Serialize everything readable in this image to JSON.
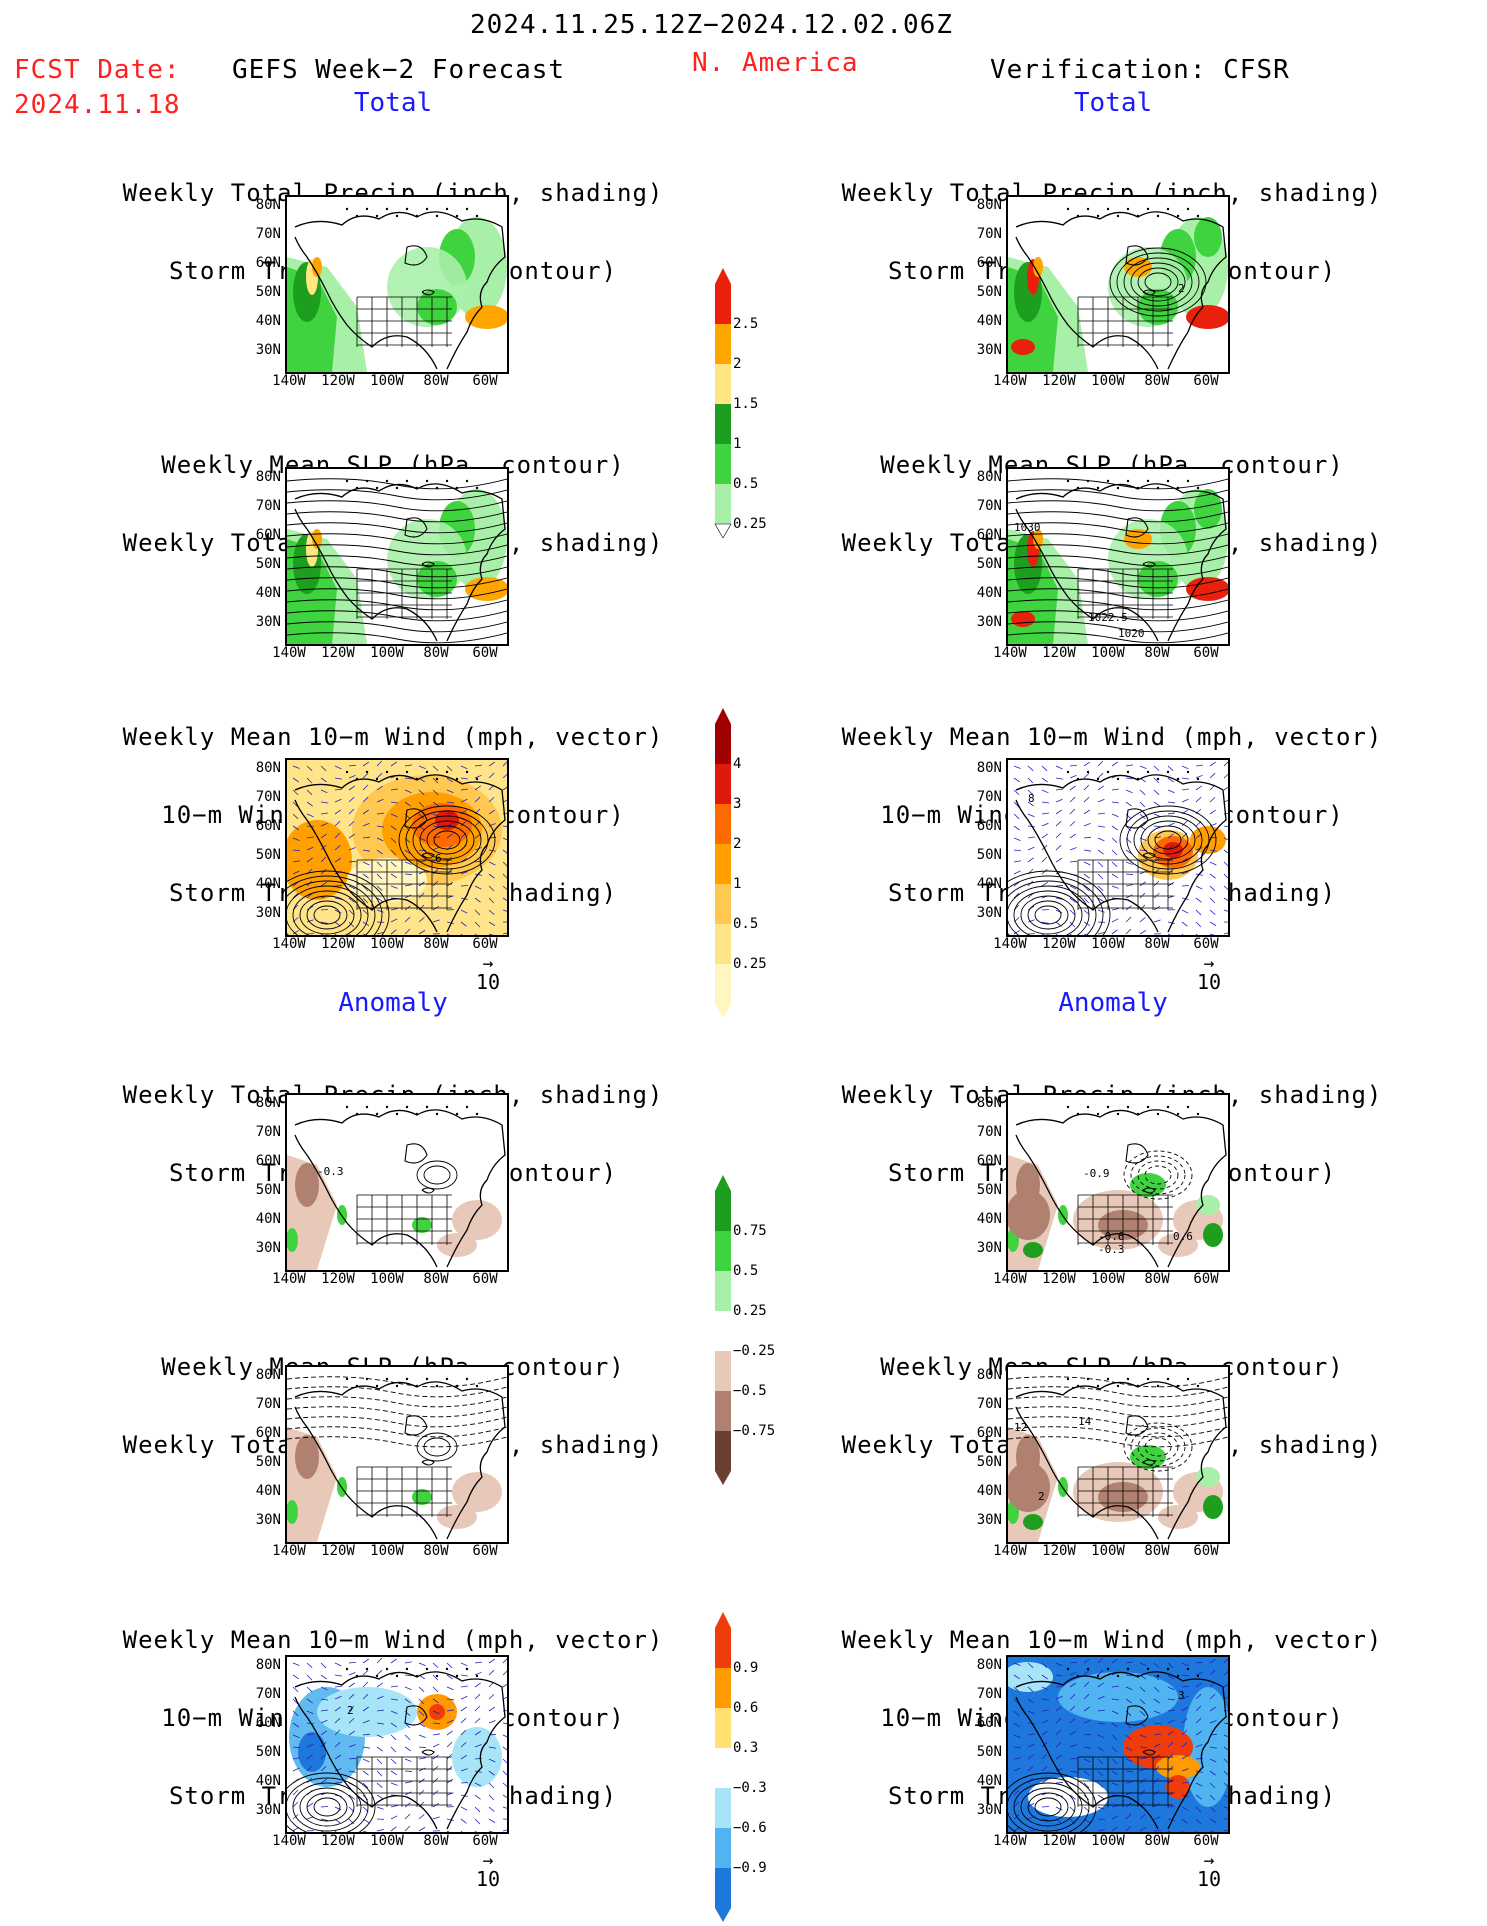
{
  "header": {
    "date_range": "2024.11.25.12Z−2024.12.02.06Z",
    "fcst_label": "FCST Date:",
    "fcst_date": "2024.11.18",
    "left_title": "GEFS Week−2 Forecast",
    "region": "N. America",
    "right_title": "Verification: CFSR"
  },
  "sections": {
    "total": "Total",
    "anomaly": "Anomaly"
  },
  "panel_titles": {
    "precip_track": [
      "Weekly Total Precip (inch, shading)",
      "Storm Track Density (contour)"
    ],
    "slp_precip": [
      "Weekly Mean SLP (hPa, contour)",
      "Weekly Total Precip (inch, shading)"
    ],
    "wind_track": [
      "Weekly Mean 10−m Wind (mph, vector)",
      "10−m Wind Speed (mph, contour)",
      "Storm Track Density (shading)"
    ]
  },
  "axes": {
    "lat_labels": [
      "80N",
      "70N",
      "60N",
      "50N",
      "40N",
      "30N"
    ],
    "lon_labels": [
      "140W",
      "120W",
      "100W",
      "80W",
      "60W"
    ]
  },
  "vector_ref": "10",
  "colorbars": {
    "precip_total": {
      "labels": [
        "2.5",
        "2",
        "1.5",
        "1",
        "0.5",
        "0.25"
      ],
      "colors": [
        "#e8200c",
        "#ffa500",
        "#ffe680",
        "#1e9e1e",
        "#3fd43f",
        "#a8f0a8"
      ]
    },
    "track_total": {
      "labels": [
        "4",
        "3",
        "2",
        "1",
        "0.5",
        "0.25"
      ],
      "colors": [
        "#a00000",
        "#e01a0a",
        "#ff6a00",
        "#ffa000",
        "#ffc850",
        "#ffe48a",
        "#fff6c0"
      ]
    },
    "precip_anom": {
      "labels": [
        "0.75",
        "0.5",
        "0.25",
        "−0.25",
        "−0.5",
        "−0.75"
      ],
      "colors": [
        "#1e9e1e",
        "#3fd43f",
        "#a8f0a8",
        "#ffffff",
        "#e8c8b8",
        "#b08070",
        "#6a4030"
      ]
    },
    "track_anom": {
      "labels": [
        "0.9",
        "0.6",
        "0.3",
        "−0.3",
        "−0.6",
        "−0.9"
      ],
      "colors": [
        "#f03c0a",
        "#ff9a00",
        "#ffe070",
        "#ffffff",
        "#a8e4f8",
        "#50b4f0",
        "#1e78dc"
      ]
    }
  },
  "contour_labels": {
    "fcst_anom_precip": "-0.3",
    "obs_total_track": "2",
    "obs_total_slp": [
      "1030",
      "1022.5",
      "1020"
    ],
    "fcst_total_wind": "6",
    "obs_total_wind": "8",
    "obs_anom_precip": [
      "-0.9",
      "-0.6",
      "-0.3",
      "0.6"
    ],
    "obs_anom_slp": [
      "12",
      "14",
      "2"
    ],
    "fcst_anom_wind": "2",
    "obs_anom_wind": "3"
  }
}
